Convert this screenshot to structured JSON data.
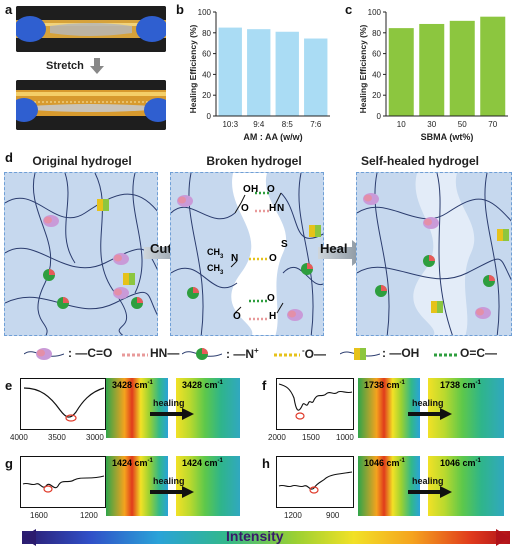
{
  "panels": {
    "a": "a",
    "b": "b",
    "c": "c",
    "d": "d",
    "e": "e",
    "f": "f",
    "g": "g",
    "h": "h"
  },
  "photo": {
    "stretch_label": "Stretch"
  },
  "chart_data": [
    {
      "type": "bar",
      "categories": [
        "10:3",
        "9:4",
        "8:5",
        "7:6"
      ],
      "values": [
        85,
        83.5,
        81,
        74.5
      ],
      "ylabel": "Healing Efficiency (%)",
      "xlabel": "AM : AA (w/w)",
      "ylim": [
        0,
        100
      ],
      "yticks": [
        "0",
        "20",
        "40",
        "60",
        "80",
        "100"
      ],
      "color": "#aadcf4"
    },
    {
      "type": "bar",
      "categories": [
        "10",
        "30",
        "50",
        "70"
      ],
      "values": [
        84.5,
        88.5,
        91.5,
        95.5
      ],
      "ylabel": "Healing Efficiency (%)",
      "xlabel": "SBMA (wt%)",
      "ylim": [
        0,
        100
      ],
      "yticks": [
        "0",
        "20",
        "40",
        "60",
        "80",
        "100"
      ],
      "color": "#8cc63f"
    }
  ],
  "schematic": {
    "title_original": "Original hydrogel",
    "title_broken": "Broken hydrogel",
    "title_healed": "Self-healed hydrogel",
    "cut_label": "Cut",
    "heal_label": "Heal",
    "ch3_top": "CH",
    "ch3_sub": "3",
    "n_plus": "N",
    "o_label": "O",
    "h_label": "H",
    "n_label": "N",
    "s_label": "S",
    "o_minus": "O",
    "legend": {
      "item1_left": ":  —C=O",
      "item1_right": "HN—",
      "item2_left": ":  —N",
      "item2_right": "O—",
      "item3_left": ":  —OH",
      "item3_right": "O=C—"
    }
  },
  "ftir": {
    "e": {
      "axis": [
        "4000",
        "3500",
        "3000"
      ],
      "wavenumber": "3428 cm",
      "healing": "healing"
    },
    "f": {
      "axis": [
        "2000",
        "1500",
        "1000"
      ],
      "wavenumber": "1738 cm",
      "healing": "healing"
    },
    "g": {
      "axis": [
        "1600",
        "1200"
      ],
      "wavenumber": "1424 cm",
      "healing": "healing"
    },
    "h": {
      "axis": [
        "1200",
        "900"
      ],
      "wavenumber": "1046 cm",
      "healing": "healing"
    },
    "sup": "-1"
  },
  "intensity_label": "Intensity",
  "colors": {
    "hydrogel_bg": "#c6d8ee",
    "dash_border": "#6f9fd6",
    "hbond_pink": "#e89a9a",
    "ionic_yellow": "#e6c21a",
    "hbond_green": "#2e9e3e"
  }
}
